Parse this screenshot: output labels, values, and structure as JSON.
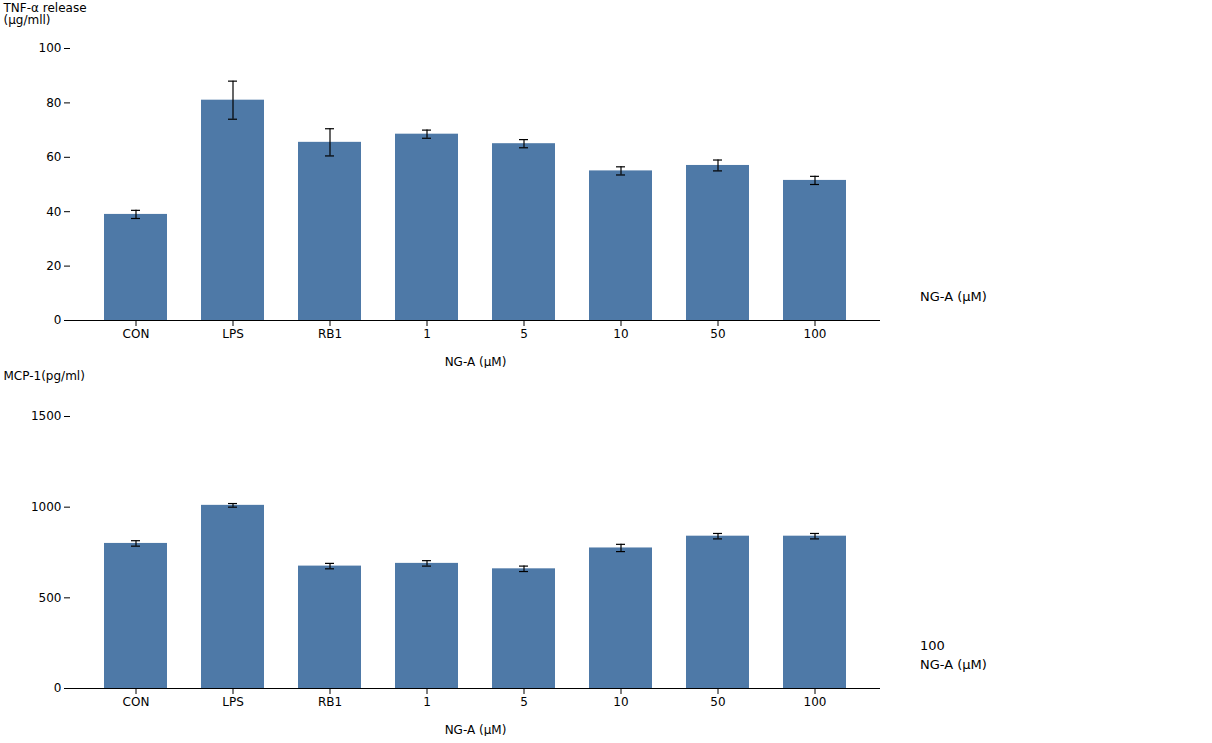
{
  "chart_data": [
    {
      "type": "bar",
      "categories": [
        "CON",
        "LPS",
        "RB1",
        "1",
        "5",
        "10",
        "50",
        "100"
      ],
      "values": [
        39,
        81,
        65.5,
        68.5,
        65,
        55,
        57,
        51.5
      ],
      "errors": [
        1.5,
        7,
        5,
        1.5,
        1.5,
        1.5,
        2,
        1.5
      ],
      "ylabel": "TNF-α release\n(μg/mll)",
      "xlabel": "NG-A (μM)",
      "ylim": [
        0,
        100
      ],
      "yticks": [
        0,
        20,
        40,
        60,
        80,
        100
      ],
      "grid": false,
      "color": "#4e79a7",
      "annotations": [
        "NG-A (μM)"
      ]
    },
    {
      "type": "bar",
      "categories": [
        "CON",
        "LPS",
        "RB1",
        "1",
        "5",
        "10",
        "50",
        "100"
      ],
      "values": [
        800,
        1010,
        675,
        690,
        660,
        775,
        840,
        840
      ],
      "errors": [
        15,
        10,
        15,
        15,
        15,
        20,
        15,
        15
      ],
      "ylabel": "MCP-1(pg/ml)",
      "xlabel": "NG-A (μM)",
      "ylim": [
        0,
        1500
      ],
      "yticks": [
        0,
        500,
        1000,
        1500
      ],
      "grid": false,
      "color": "#4e79a7",
      "annotations": [
        "100",
        "NG-A (μM)"
      ]
    }
  ]
}
